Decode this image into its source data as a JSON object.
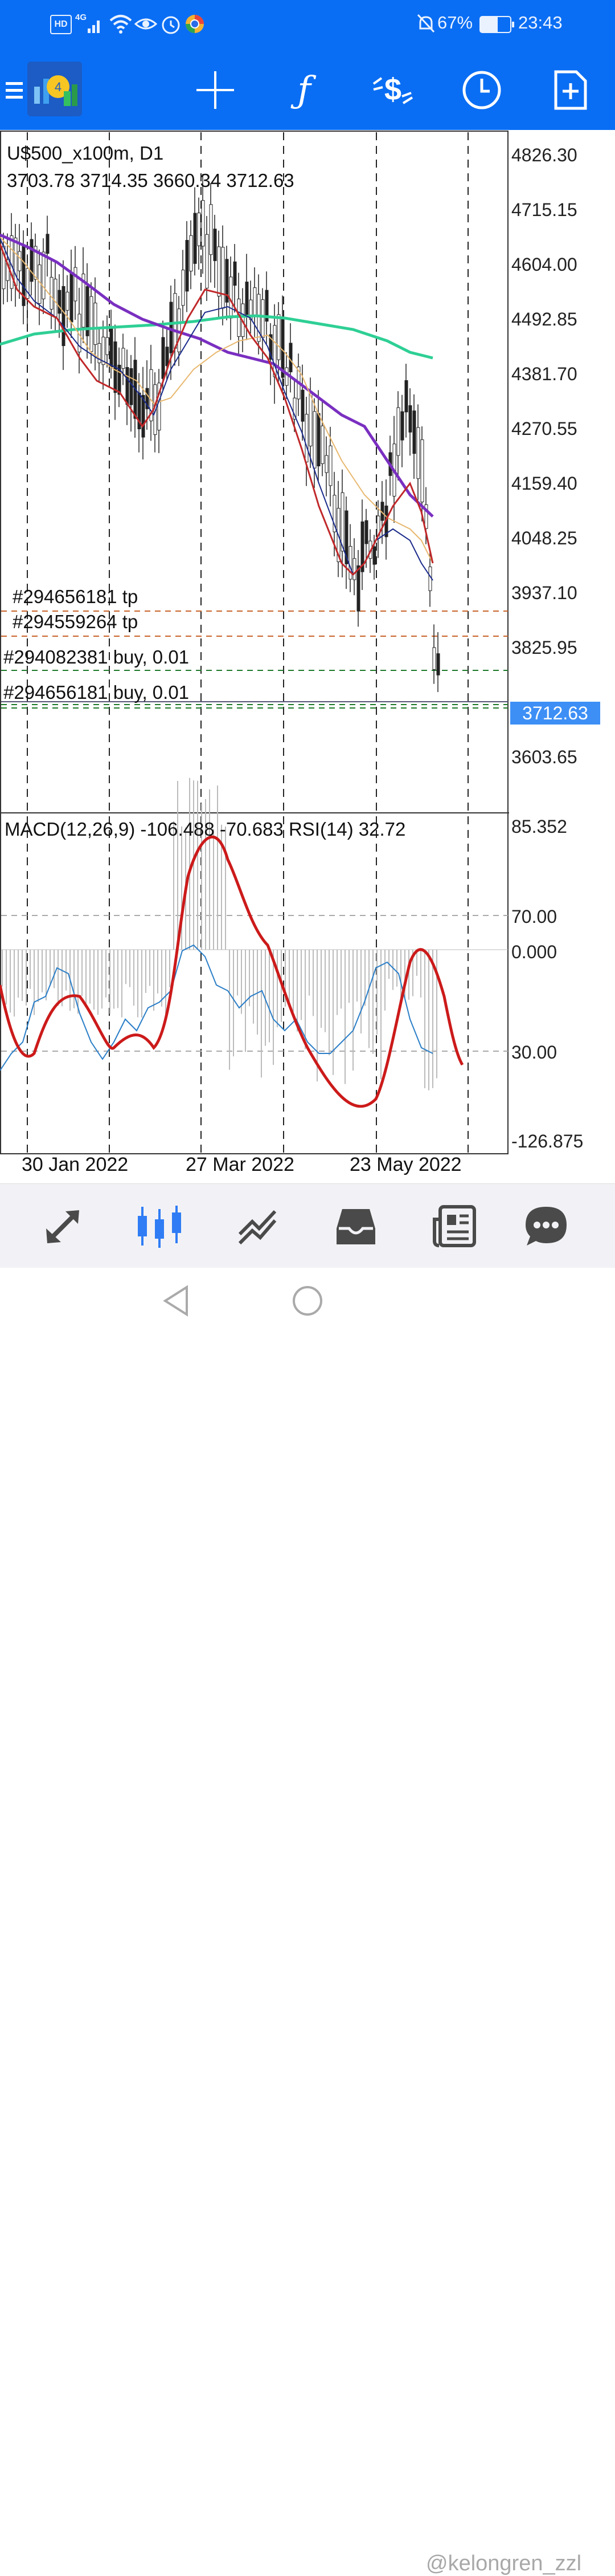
{
  "status_bar": {
    "left_icons": [
      "hd-icon",
      "4g-signal-icon",
      "wifi-icon",
      "eye-icon",
      "alarm-icon",
      "browser-icon"
    ],
    "hd": "HD",
    "net": "4G",
    "right_icons": [
      "mute-bell-icon",
      "battery-icon"
    ],
    "battery": "67%",
    "time": "23:43"
  },
  "toolbar": {
    "buttons": [
      "menu-icon",
      "app-logo-icon",
      "crosshair-icon",
      "function-icon",
      "trade-icon",
      "timeframe-clock-icon",
      "new-order-icon"
    ]
  },
  "chart": {
    "symbol_line": "U$500_x100m, D1",
    "ohlc_line": "3703.78 3714.35 3660.34 3712.63",
    "price_labels": [
      "4826.30",
      "4715.15",
      "4604.00",
      "4492.85",
      "4381.70",
      "4270.55",
      "4159.40",
      "4048.25",
      "3937.10",
      "3825.95",
      "3603.65"
    ],
    "current_price": "3712.63",
    "order_lines": [
      {
        "label": "#294656181 tp",
        "color": "#c8642a"
      },
      {
        "label": "#294559264 tp",
        "color": "#c8642a"
      },
      {
        "label": "#294082381 buy, 0.01",
        "color": "#1e7a2a"
      },
      {
        "label": "#294656181 buy, 0.01",
        "color": "#1e7a2a"
      }
    ],
    "indicator_line": "MACD(12,26,9) -106.488 -70.683 RSI(14) 32.72",
    "indicator_labels": [
      "85.352",
      "70.00",
      "0.000",
      "30.00",
      "-126.875"
    ],
    "date_labels": [
      "30 Jan 2022",
      "27 Mar 2022",
      "23 May 2022"
    ],
    "colors": {
      "ma_fast": "#c0282a",
      "ma_mid": "#1a2a8a",
      "ma_tan": "#e8b870",
      "ma_purple": "#7a2fc0",
      "ma_teal": "#2ecf95",
      "rsi": "#2a7ec8",
      "macd_signal": "#cc1a1a"
    }
  },
  "bottom_nav": {
    "items": [
      "quotes-icon",
      "chart-icon",
      "trade-icon",
      "history-icon",
      "news-icon",
      "chat-icon"
    ],
    "active": "chart-icon"
  },
  "system_nav": {
    "items": [
      "back-icon",
      "home-icon"
    ],
    "watermark": "@kelongren_zzl"
  }
}
